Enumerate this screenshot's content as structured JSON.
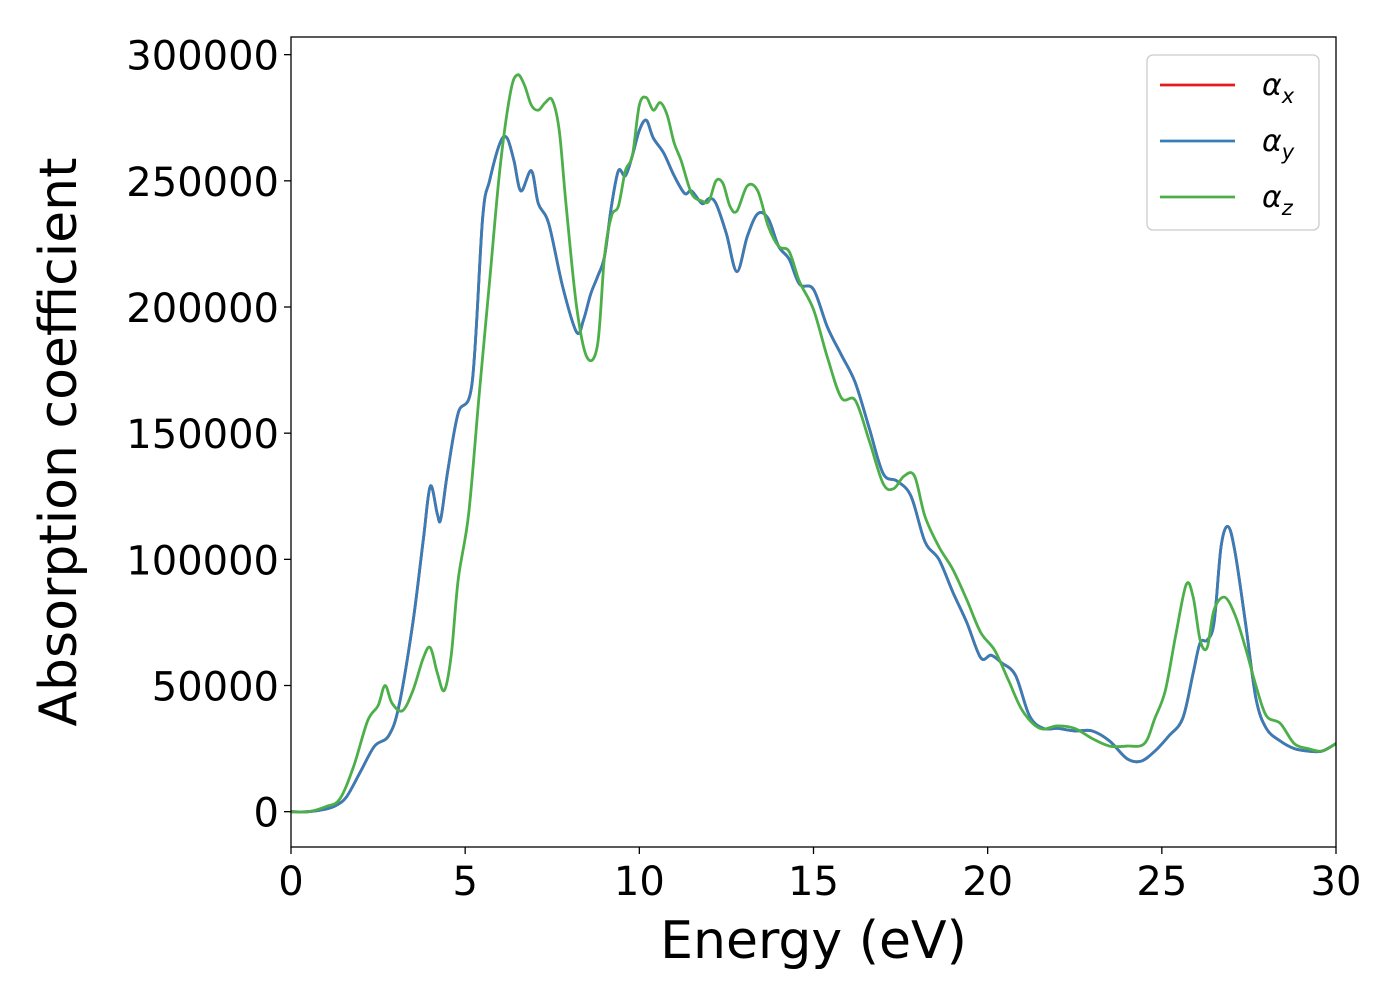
{
  "chart_data": {
    "type": "line",
    "title": "",
    "xlabel": "Energy (eV)",
    "ylabel": "Absorption coefficient",
    "xlim": [
      0,
      30
    ],
    "ylim": [
      -14000,
      307000
    ],
    "xticks": [
      0,
      5,
      10,
      15,
      20,
      25,
      30
    ],
    "xtick_labels": [
      "0",
      "5",
      "10",
      "15",
      "20",
      "25",
      "30"
    ],
    "yticks": [
      0,
      50000,
      100000,
      150000,
      200000,
      250000,
      300000
    ],
    "ytick_labels": [
      "0",
      "50000",
      "100000",
      "150000",
      "200000",
      "250000",
      "300000"
    ],
    "grid": false,
    "legend_position": "top-right",
    "series": [
      {
        "name": "α_x",
        "legend_base": "α",
        "legend_sub": "x",
        "color": "#e41a1c",
        "x": [
          0,
          0.5,
          1.0,
          1.3,
          1.6,
          2.0,
          2.4,
          2.8,
          3.1,
          3.5,
          3.8,
          4.0,
          4.2,
          4.3,
          4.5,
          4.8,
          5.2,
          5.5,
          5.7,
          6.0,
          6.2,
          6.4,
          6.6,
          6.9,
          7.1,
          7.4,
          7.8,
          8.2,
          8.4,
          8.6,
          8.8,
          9.0,
          9.2,
          9.4,
          9.6,
          9.8,
          10.0,
          10.2,
          10.4,
          10.7,
          11.0,
          11.3,
          11.5,
          11.8,
          12.0,
          12.2,
          12.5,
          12.8,
          13.1,
          13.4,
          13.7,
          14.0,
          14.3,
          14.6,
          15.0,
          15.4,
          15.8,
          16.2,
          16.6,
          17.0,
          17.4,
          17.8,
          18.2,
          18.6,
          19.0,
          19.4,
          19.8,
          20.1,
          20.4,
          20.8,
          21.2,
          21.6,
          22.0,
          22.5,
          23.0,
          23.5,
          24.0,
          24.4,
          24.8,
          25.2,
          25.6,
          25.9,
          26.1,
          26.3,
          26.5,
          26.7,
          26.9,
          27.1,
          27.4,
          27.7,
          28.0,
          28.4,
          28.8,
          29.2,
          29.6,
          30.0
        ],
        "y": [
          0,
          0,
          1000,
          2500,
          6000,
          16000,
          26000,
          30000,
          42000,
          75000,
          108000,
          129000,
          118000,
          116000,
          135000,
          158000,
          170000,
          235000,
          250000,
          265000,
          267000,
          258000,
          246000,
          254000,
          241000,
          233000,
          208000,
          190000,
          195000,
          205000,
          212000,
          220000,
          240000,
          254000,
          252000,
          260000,
          270000,
          274000,
          267000,
          261000,
          252000,
          245000,
          246000,
          241000,
          243000,
          241000,
          229000,
          214000,
          228000,
          237000,
          235000,
          224000,
          219000,
          209000,
          207000,
          192000,
          181000,
          170000,
          152000,
          134000,
          131000,
          125000,
          107000,
          100000,
          87000,
          75000,
          61000,
          62000,
          59000,
          54000,
          38000,
          33000,
          33000,
          32000,
          32000,
          28000,
          21000,
          20000,
          24000,
          30000,
          37000,
          55000,
          67000,
          68000,
          75000,
          105000,
          113000,
          103000,
          75000,
          45000,
          33000,
          28000,
          25000,
          24000,
          24000,
          27000
        ]
      },
      {
        "name": "α_y",
        "legend_base": "α",
        "legend_sub": "y",
        "color": "#377eb8",
        "x": [
          0,
          0.5,
          1.0,
          1.3,
          1.6,
          2.0,
          2.4,
          2.8,
          3.1,
          3.5,
          3.8,
          4.0,
          4.2,
          4.3,
          4.5,
          4.8,
          5.2,
          5.5,
          5.7,
          6.0,
          6.2,
          6.4,
          6.6,
          6.9,
          7.1,
          7.4,
          7.8,
          8.2,
          8.4,
          8.6,
          8.8,
          9.0,
          9.2,
          9.4,
          9.6,
          9.8,
          10.0,
          10.2,
          10.4,
          10.7,
          11.0,
          11.3,
          11.5,
          11.8,
          12.0,
          12.2,
          12.5,
          12.8,
          13.1,
          13.4,
          13.7,
          14.0,
          14.3,
          14.6,
          15.0,
          15.4,
          15.8,
          16.2,
          16.6,
          17.0,
          17.4,
          17.8,
          18.2,
          18.6,
          19.0,
          19.4,
          19.8,
          20.1,
          20.4,
          20.8,
          21.2,
          21.6,
          22.0,
          22.5,
          23.0,
          23.5,
          24.0,
          24.4,
          24.8,
          25.2,
          25.6,
          25.9,
          26.1,
          26.3,
          26.5,
          26.7,
          26.9,
          27.1,
          27.4,
          27.7,
          28.0,
          28.4,
          28.8,
          29.2,
          29.6,
          30.0
        ],
        "y": [
          0,
          0,
          1000,
          2500,
          6000,
          16000,
          26000,
          30000,
          42000,
          75000,
          108000,
          129000,
          118000,
          116000,
          135000,
          158000,
          170000,
          235000,
          250000,
          265000,
          267000,
          258000,
          246000,
          254000,
          241000,
          233000,
          208000,
          190000,
          195000,
          205000,
          212000,
          220000,
          240000,
          254000,
          252000,
          260000,
          270000,
          274000,
          267000,
          261000,
          252000,
          245000,
          246000,
          241000,
          243000,
          241000,
          229000,
          214000,
          228000,
          237000,
          235000,
          224000,
          219000,
          209000,
          207000,
          192000,
          181000,
          170000,
          152000,
          134000,
          131000,
          125000,
          107000,
          100000,
          87000,
          75000,
          61000,
          62000,
          59000,
          54000,
          38000,
          33000,
          33000,
          32000,
          32000,
          28000,
          21000,
          20000,
          24000,
          30000,
          37000,
          55000,
          67000,
          68000,
          75000,
          105000,
          113000,
          103000,
          75000,
          45000,
          33000,
          28000,
          25000,
          24000,
          24000,
          27000
        ]
      },
      {
        "name": "α_z",
        "legend_base": "α",
        "legend_sub": "z",
        "color": "#4daf4a",
        "x": [
          0,
          0.5,
          1.0,
          1.4,
          1.8,
          2.2,
          2.5,
          2.7,
          2.9,
          3.2,
          3.5,
          3.8,
          4.0,
          4.2,
          4.4,
          4.6,
          4.8,
          5.1,
          5.4,
          5.7,
          6.0,
          6.3,
          6.5,
          6.7,
          6.9,
          7.1,
          7.3,
          7.5,
          7.7,
          7.9,
          8.2,
          8.5,
          8.8,
          9.0,
          9.2,
          9.4,
          9.6,
          9.8,
          10.0,
          10.2,
          10.4,
          10.6,
          10.8,
          11.0,
          11.2,
          11.5,
          11.8,
          12.0,
          12.2,
          12.4,
          12.6,
          12.8,
          13.1,
          13.4,
          13.7,
          14.0,
          14.3,
          14.6,
          15.0,
          15.4,
          15.8,
          16.2,
          16.6,
          17.0,
          17.3,
          17.6,
          17.9,
          18.2,
          18.6,
          19.0,
          19.4,
          19.8,
          20.2,
          20.6,
          21.0,
          21.5,
          22.0,
          22.5,
          23.0,
          23.5,
          24.0,
          24.5,
          24.8,
          25.1,
          25.4,
          25.7,
          25.9,
          26.1,
          26.3,
          26.5,
          26.8,
          27.1,
          27.4,
          27.7,
          28.0,
          28.4,
          28.8,
          29.2,
          29.6,
          30.0
        ],
        "y": [
          0,
          0,
          2000,
          5000,
          18000,
          36000,
          42000,
          50000,
          43000,
          40000,
          48000,
          61000,
          65000,
          55000,
          48000,
          62000,
          92000,
          118000,
          165000,
          210000,
          255000,
          285000,
          292000,
          288000,
          280000,
          278000,
          281000,
          282000,
          270000,
          240000,
          200000,
          180000,
          185000,
          220000,
          236000,
          240000,
          254000,
          260000,
          280000,
          283000,
          278000,
          281000,
          276000,
          265000,
          258000,
          245000,
          242000,
          242000,
          250000,
          249000,
          240000,
          238000,
          248000,
          246000,
          232000,
          224000,
          222000,
          210000,
          199000,
          180000,
          164000,
          163000,
          147000,
          130000,
          128000,
          133000,
          133000,
          117000,
          105000,
          96000,
          84000,
          71000,
          64000,
          52000,
          40000,
          33000,
          34000,
          33000,
          29000,
          26000,
          26000,
          27000,
          37000,
          48000,
          70000,
          90000,
          85000,
          68000,
          65000,
          80000,
          85000,
          78000,
          65000,
          50000,
          38000,
          35000,
          27000,
          25000,
          24000,
          27000
        ]
      }
    ]
  }
}
